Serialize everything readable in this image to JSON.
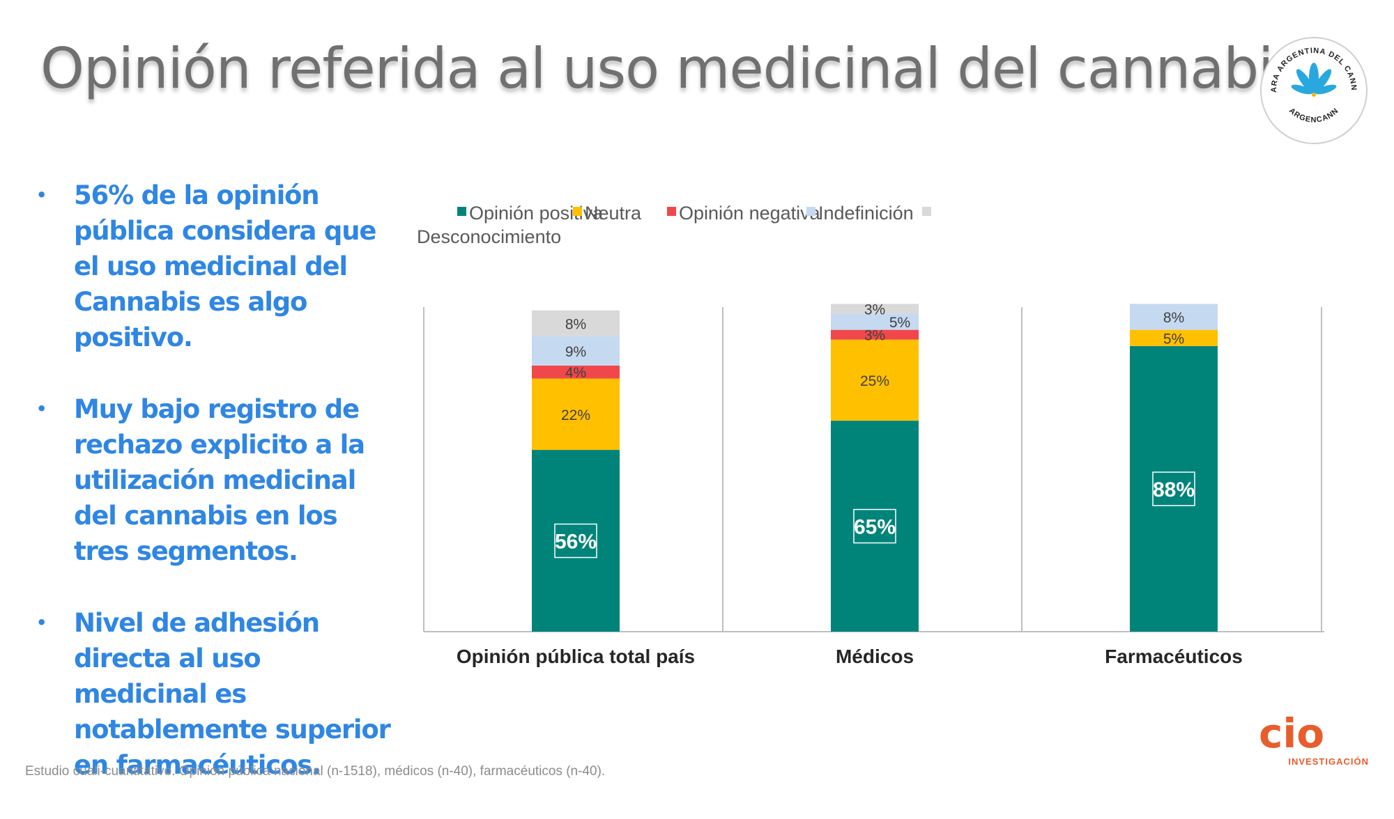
{
  "title": "Opinión referida al uso medicinal del cannabis",
  "bullets": [
    "56% de la opinión pública considera que el uso medicinal del Cannabis es algo positivo.",
    "Muy bajo registro de rechazo explicito a la utilización medicinal del cannabis en los tres segmentos.",
    "Nivel de adhesión directa al uso medicinal es notablemente superior en farmacéuticos."
  ],
  "bullet_symbol": "•",
  "footnote": "Estudio cuali-cuantitativo. Opinión pública nacional (n-1518), médicos (n-40), farmacéuticos (n-40).",
  "logos": {
    "argencann_ring": "CAMARA ARGENTINA DEL CANNABIS",
    "argencann_bottom": "ARGENCANN",
    "cio_word": "cio",
    "cio_sub": "INVESTIGACIÓN"
  },
  "colors": {
    "positive": "#00847a",
    "neutral": "#ffc000",
    "negative": "#f0474c",
    "undefined": "#c5d9f1",
    "unknown": "#d9d9d9",
    "bullet_text": "#2f86e3",
    "title": "#707070",
    "cio": "#e85d2c",
    "cannabis_logo": "#29a8e0"
  },
  "chart_data": {
    "type": "bar",
    "stacked": true,
    "title": "",
    "categories": [
      "Opinión pública total país",
      "Médicos",
      "Farmacéuticos"
    ],
    "series": [
      {
        "name": "Opinión positiva",
        "key": "positive",
        "values": [
          56,
          65,
          88
        ]
      },
      {
        "name": "Neutra",
        "key": "neutral",
        "values": [
          22,
          25,
          5
        ]
      },
      {
        "name": "Opinión negativa",
        "key": "negative",
        "values": [
          4,
          3,
          0
        ]
      },
      {
        "name": "Indefinición",
        "key": "undefined",
        "values": [
          9,
          5,
          8
        ]
      },
      {
        "name": "Desconocimiento",
        "key": "unknown",
        "values": [
          8,
          3,
          0
        ]
      }
    ],
    "labels": [
      [
        "56%",
        "65%",
        "88%"
      ],
      [
        "22%",
        "25%",
        "5%"
      ],
      [
        "4%",
        "3%",
        ""
      ],
      [
        "9%",
        "5%",
        "8%"
      ],
      [
        "8%",
        "3%",
        ""
      ]
    ],
    "legend_position": "top-left",
    "ylim": [
      0,
      100
    ],
    "xlabel": "",
    "ylabel": ""
  }
}
